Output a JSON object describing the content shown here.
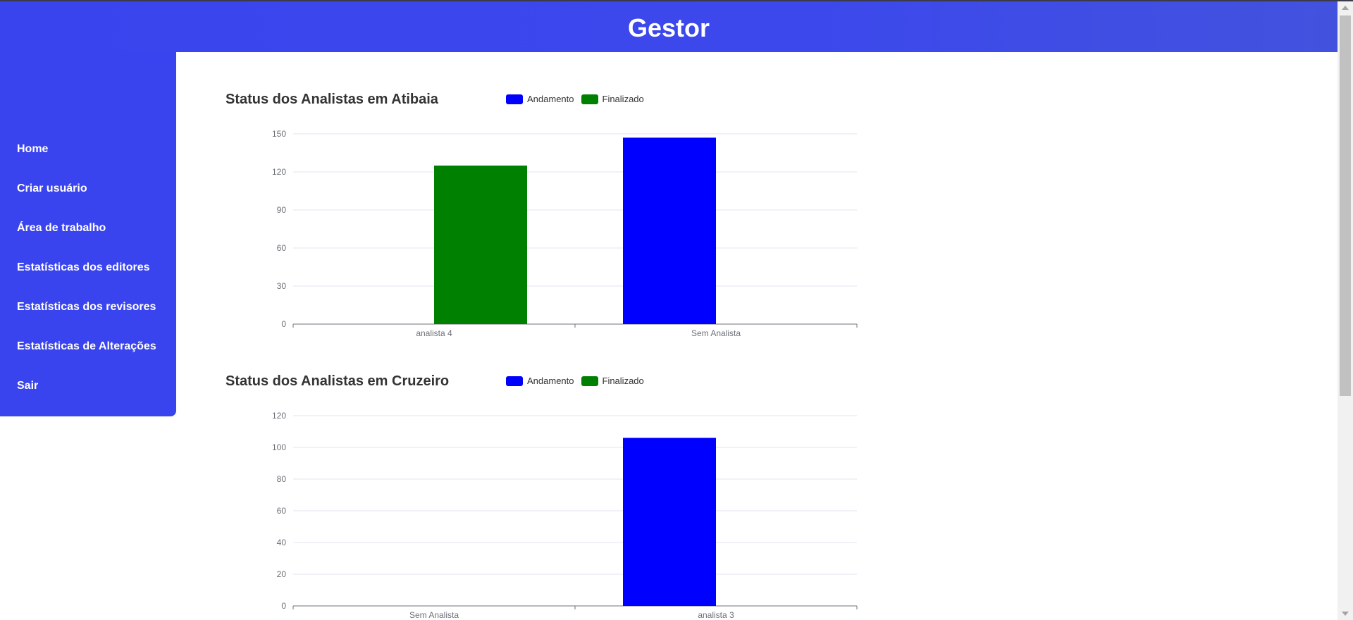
{
  "app": {
    "title": "Gestor"
  },
  "sidebar": {
    "items": [
      {
        "label": "Home"
      },
      {
        "label": "Criar usuário"
      },
      {
        "label": "Área de trabalho"
      },
      {
        "label": "Estatísticas dos editores"
      },
      {
        "label": "Estatísticas dos revisores"
      },
      {
        "label": "Estatísticas de Alterações"
      },
      {
        "label": "Sair"
      }
    ]
  },
  "colors": {
    "brand": "#3a44ee",
    "andamento": "#0000ff",
    "finalizado": "#008000"
  },
  "chart_data": [
    {
      "type": "bar",
      "title": "Status dos Analistas em Atibaia",
      "categories": [
        "analista 4",
        "Sem Analista"
      ],
      "series": [
        {
          "name": "Andamento",
          "color": "#0000ff",
          "values": [
            0,
            147
          ]
        },
        {
          "name": "Finalizado",
          "color": "#008000",
          "values": [
            125,
            0
          ]
        }
      ],
      "ylim": [
        0,
        150
      ],
      "yticks": [
        0,
        30,
        60,
        90,
        120,
        150
      ],
      "grid": true,
      "legend": "top"
    },
    {
      "type": "bar",
      "title": "Status dos Analistas em Cruzeiro",
      "categories": [
        "Sem Analista",
        "analista 3"
      ],
      "series": [
        {
          "name": "Andamento",
          "color": "#0000ff",
          "values": [
            0,
            106
          ]
        },
        {
          "name": "Finalizado",
          "color": "#008000",
          "values": [
            0,
            0
          ]
        }
      ],
      "ylim": [
        0,
        120
      ],
      "yticks": [
        0,
        20,
        40,
        60,
        80,
        100,
        120
      ],
      "grid": true,
      "legend": "top"
    }
  ]
}
